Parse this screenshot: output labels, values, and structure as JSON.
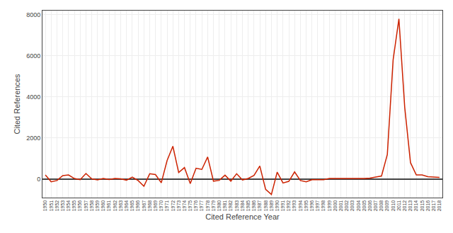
{
  "chart_data": {
    "type": "line",
    "xlabel": "Cited Reference Year",
    "ylabel": "Cited References",
    "x": [
      1950,
      1951,
      1952,
      1953,
      1954,
      1955,
      1956,
      1957,
      1958,
      1959,
      1960,
      1961,
      1962,
      1963,
      1964,
      1965,
      1966,
      1967,
      1968,
      1969,
      1970,
      1971,
      1972,
      1973,
      1974,
      1975,
      1976,
      1977,
      1978,
      1979,
      1980,
      1981,
      1982,
      1983,
      1984,
      1985,
      1986,
      1987,
      1988,
      1989,
      1990,
      1991,
      1992,
      1993,
      1994,
      1995,
      1996,
      1997,
      1998,
      1999,
      2000,
      2001,
      2002,
      2003,
      2004,
      2005,
      2006,
      2007,
      2008,
      2009,
      2010,
      2011,
      2012,
      2013,
      2014,
      2015,
      2016,
      2017,
      2018
    ],
    "values": [
      200,
      -130,
      -70,
      170,
      200,
      30,
      -30,
      270,
      10,
      -40,
      30,
      -20,
      30,
      10,
      -50,
      100,
      -70,
      -350,
      260,
      220,
      -180,
      900,
      1600,
      320,
      560,
      -220,
      530,
      470,
      1080,
      -100,
      -60,
      190,
      -100,
      260,
      -40,
      30,
      180,
      640,
      -500,
      -750,
      340,
      -190,
      -110,
      350,
      -70,
      -130,
      -30,
      -20,
      -30,
      30,
      20,
      30,
      30,
      20,
      30,
      30,
      50,
      100,
      150,
      1200,
      5800,
      7800,
      3500,
      800,
      200,
      200,
      120,
      100,
      80
    ],
    "color": "#cc2200",
    "xlim": [
      1949.5,
      2018.5
    ],
    "xticks": [
      1950,
      1951,
      1952,
      1953,
      1954,
      1955,
      1956,
      1957,
      1958,
      1959,
      1960,
      1961,
      1962,
      1963,
      1964,
      1965,
      1966,
      1967,
      1968,
      1969,
      1970,
      1971,
      1972,
      1973,
      1974,
      1975,
      1976,
      1977,
      1978,
      1979,
      1980,
      1981,
      1982,
      1983,
      1984,
      1985,
      1986,
      1987,
      1988,
      1989,
      1990,
      1991,
      1992,
      1993,
      1994,
      1995,
      1996,
      1997,
      1998,
      1999,
      2000,
      2001,
      2002,
      2003,
      2004,
      2005,
      2006,
      2007,
      2008,
      2009,
      2010,
      2011,
      2012,
      2013,
      2014,
      2015,
      2016,
      2017,
      2018
    ],
    "ylim": [
      -900,
      8200
    ],
    "yticks": [
      0,
      2000,
      4000,
      6000,
      8000
    ],
    "grid": true
  }
}
